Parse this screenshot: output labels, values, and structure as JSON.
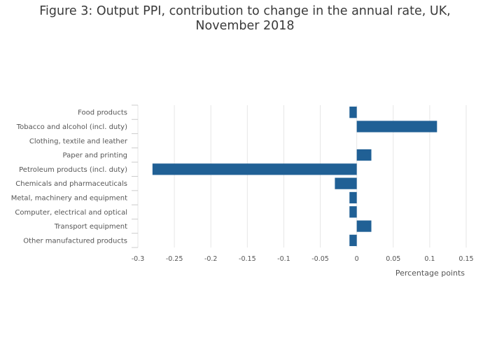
{
  "figure": {
    "title_line1": "Figure 3: Output PPI, contribution to change in the annual rate, UK,",
    "title_line2": "November 2018"
  },
  "colors": {
    "bar": "#206095",
    "grid": "#e6e6e6",
    "text": "#555555"
  },
  "chart_data": {
    "type": "bar",
    "orientation": "horizontal",
    "title": "Figure 3: Output PPI, contribution to change in the annual rate, UK, November 2018",
    "xlabel": "Percentage points",
    "ylabel": "",
    "xlim": [
      -0.3,
      0.15
    ],
    "xticks": [
      -0.3,
      -0.25,
      -0.2,
      -0.15,
      -0.1,
      -0.05,
      0,
      0.05,
      0.1,
      0.15
    ],
    "xtick_labels": [
      "-0.3",
      "-0.25",
      "-0.2",
      "-0.15",
      "-0.1",
      "-0.05",
      "0",
      "0.05",
      "0.1",
      "0.15"
    ],
    "grid": true,
    "categories": [
      "Food products",
      "Tobacco and alcohol (incl. duty)",
      "Clothing, textile and leather",
      "Paper and printing",
      "Petroleum products (incl. duty)",
      "Chemicals and pharmaceuticals",
      "Metal, machinery and equipment",
      "Computer, electrical and optical",
      "Transport equipment",
      "Other manufactured products"
    ],
    "values": [
      -0.01,
      0.11,
      0,
      0.02,
      -0.28,
      -0.03,
      -0.01,
      -0.01,
      0.02,
      -0.01
    ]
  }
}
